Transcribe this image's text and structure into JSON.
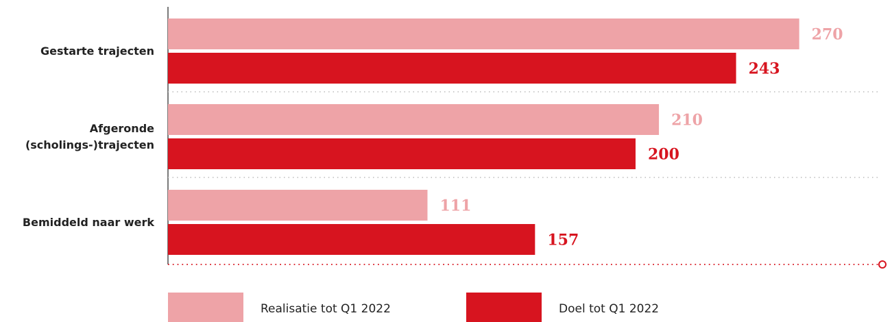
{
  "chart_data": {
    "type": "hbar",
    "categories": [
      "Gestarte trajecten",
      "Afgeronde (scholings-)trajecten",
      "Bemiddeld naar werk"
    ],
    "series": [
      {
        "name": "Realisatie tot Q1 2022",
        "color": "#eea3a7",
        "values": [
          270,
          210,
          111
        ]
      },
      {
        "name": "Doel tot Q1 2022",
        "color": "#d7141f",
        "values": [
          243,
          200,
          157
        ]
      }
    ],
    "xlim": [
      0,
      305
    ]
  }
}
